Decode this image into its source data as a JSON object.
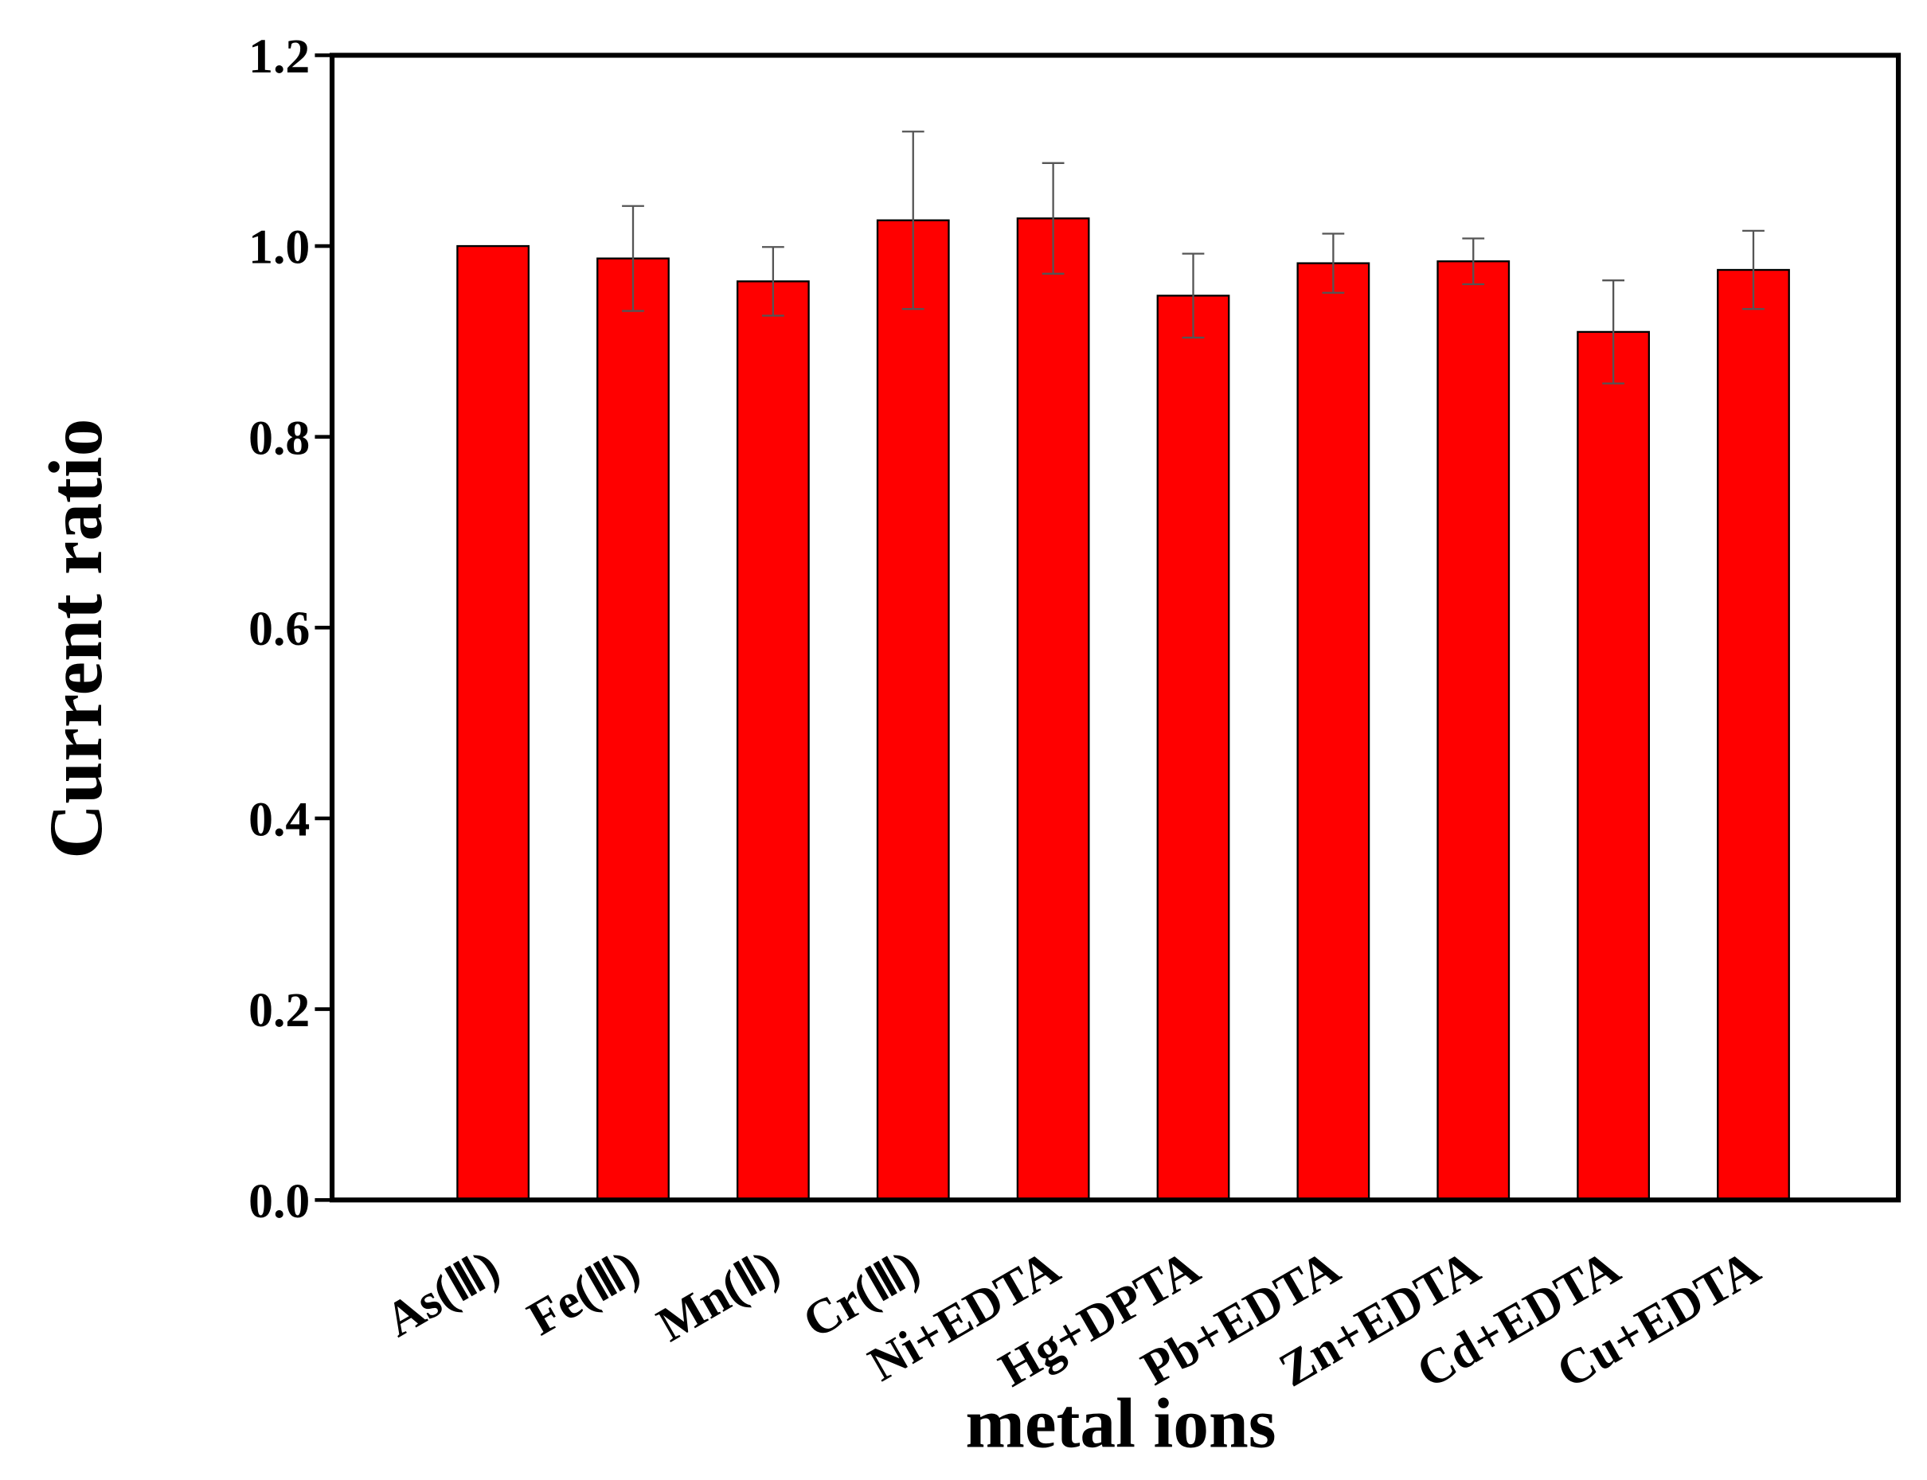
{
  "chart_data": {
    "type": "bar",
    "xlabel": "metal ions",
    "ylabel": "Current ratio",
    "categories": [
      "As(Ⅲ)",
      "Fe(Ⅲ)",
      "Mn(Ⅱ)",
      "Cr(Ⅲ)",
      "Ni+EDTA",
      "Hg+DPTA",
      "Pb+EDTA",
      "Zn+EDTA",
      "Cd+EDTA",
      "Cu+EDTA"
    ],
    "values": [
      1.0,
      0.987,
      0.963,
      1.027,
      1.029,
      0.948,
      0.982,
      0.984,
      0.91,
      0.975
    ],
    "errors": [
      0,
      0.055,
      0.036,
      0.093,
      0.058,
      0.044,
      0.031,
      0.024,
      0.054,
      0.041
    ],
    "color": "#ff0000",
    "ylim": [
      0,
      1.2
    ],
    "yticks": [
      {
        "value": 0,
        "label": "0.0"
      },
      0.2,
      0.4,
      0.6,
      0.8,
      {
        "value": 1,
        "label": "1.0"
      },
      1.2
    ],
    "grid": false
  }
}
